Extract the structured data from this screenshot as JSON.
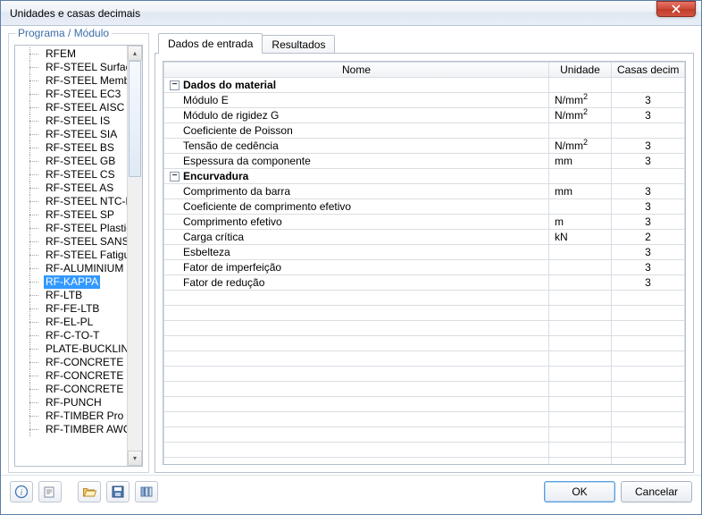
{
  "window": {
    "title": "Unidades e casas decimais"
  },
  "sidebar": {
    "title": "Programa / Módulo",
    "selected": "RF-KAPPA",
    "items": [
      "RFEM",
      "RF-STEEL Surfaces",
      "RF-STEEL Members",
      "RF-STEEL EC3",
      "RF-STEEL AISC",
      "RF-STEEL IS",
      "RF-STEEL SIA",
      "RF-STEEL BS",
      "RF-STEEL GB",
      "RF-STEEL CS",
      "RF-STEEL AS",
      "RF-STEEL NTC-DF",
      "RF-STEEL SP",
      "RF-STEEL Plastic",
      "RF-STEEL SANS",
      "RF-STEEL Fatigue Members",
      "RF-ALUMINIUM",
      "RF-KAPPA",
      "RF-LTB",
      "RF-FE-LTB",
      "RF-EL-PL",
      "RF-C-TO-T",
      "PLATE-BUCKLING",
      "RF-CONCRETE Superficial",
      "RF-CONCRETE Members",
      "RF-CONCRETE Columns",
      "RF-PUNCH",
      "RF-TIMBER Pro",
      "RF-TIMBER AWC"
    ]
  },
  "tabs": [
    {
      "label": "Dados de entrada",
      "active": true
    },
    {
      "label": "Resultados",
      "active": false
    }
  ],
  "grid": {
    "columns": [
      "Nome",
      "Unidade",
      "Casas decimais"
    ],
    "groups": [
      {
        "title": "Dados do material",
        "rows": [
          {
            "name": "Módulo E",
            "unit_html": "N/mm<span class='sup'>2</span>",
            "dec": "3"
          },
          {
            "name": "Módulo de rigidez G",
            "unit_html": "N/mm<span class='sup'>2</span>",
            "dec": "3"
          },
          {
            "name": "Coeficiente de Poisson",
            "unit_html": "",
            "dec": ""
          },
          {
            "name": "Tensão de cedência",
            "unit_html": "N/mm<span class='sup'>2</span>",
            "dec": "3"
          },
          {
            "name": "Espessura da componente",
            "unit_html": "mm",
            "dec": "3"
          }
        ]
      },
      {
        "title": "Encurvadura",
        "rows": [
          {
            "name": "Comprimento da barra",
            "unit_html": "mm",
            "dec": "3"
          },
          {
            "name": "Coeficiente de comprimento efetivo",
            "unit_html": "",
            "dec": "3"
          },
          {
            "name": "Comprimento efetivo",
            "unit_html": "m",
            "dec": "3"
          },
          {
            "name": "Carga crítica",
            "unit_html": "kN",
            "dec": "2"
          },
          {
            "name": "Esbelteza",
            "unit_html": "",
            "dec": "3"
          },
          {
            "name": "Fator de imperfeição",
            "unit_html": "",
            "dec": "3"
          },
          {
            "name": "Fator de redução",
            "unit_html": "",
            "dec": "3"
          }
        ]
      }
    ],
    "empty_rows": 13
  },
  "footer": {
    "ok": "OK",
    "cancel": "Cancelar"
  },
  "colors": {
    "selection_bg": "#3399ff",
    "link": "#3a6da8",
    "border": "#b5bfcd"
  }
}
